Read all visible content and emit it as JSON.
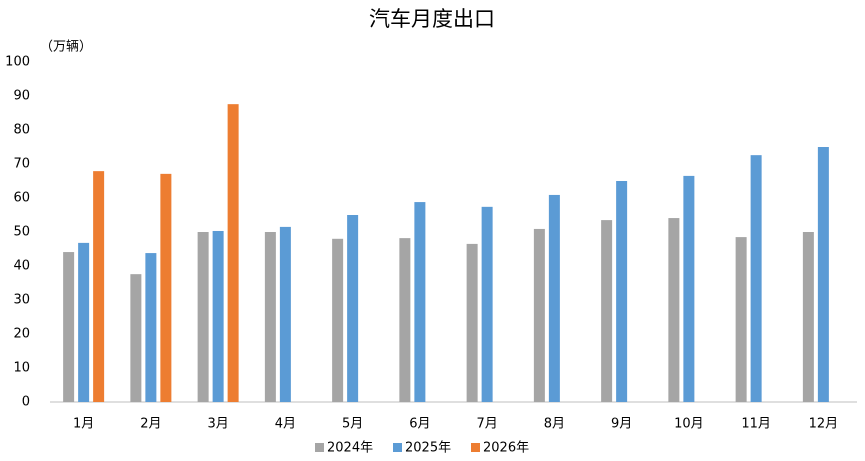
{
  "chart_data": {
    "type": "bar",
    "title": "汽车月度出口",
    "y_unit": "（万辆）",
    "categories": [
      "1月",
      "2月",
      "3月",
      "4月",
      "5月",
      "6月",
      "7月",
      "8月",
      "9月",
      "10月",
      "11月",
      "12月"
    ],
    "series": [
      {
        "name": "2024年",
        "color": "#a5a5a5",
        "values": [
          44.1,
          37.6,
          50.0,
          50.0,
          48.0,
          48.2,
          46.5,
          50.9,
          53.5,
          54.1,
          48.5,
          50.0
        ]
      },
      {
        "name": "2025年",
        "color": "#5b9bd5",
        "values": [
          46.8,
          43.8,
          50.3,
          51.5,
          55.0,
          58.8,
          57.4,
          60.9,
          65.0,
          66.5,
          72.6,
          75.0
        ]
      },
      {
        "name": "2026年",
        "color": "#ed7d31",
        "values": [
          67.9,
          67.1,
          87.6,
          null,
          null,
          null,
          null,
          null,
          null,
          null,
          null,
          null
        ]
      }
    ],
    "ylim": [
      0,
      100
    ],
    "yticks": [
      0,
      10,
      20,
      30,
      40,
      50,
      60,
      70,
      80,
      90,
      100
    ],
    "grid": false,
    "legend": "bottom"
  }
}
